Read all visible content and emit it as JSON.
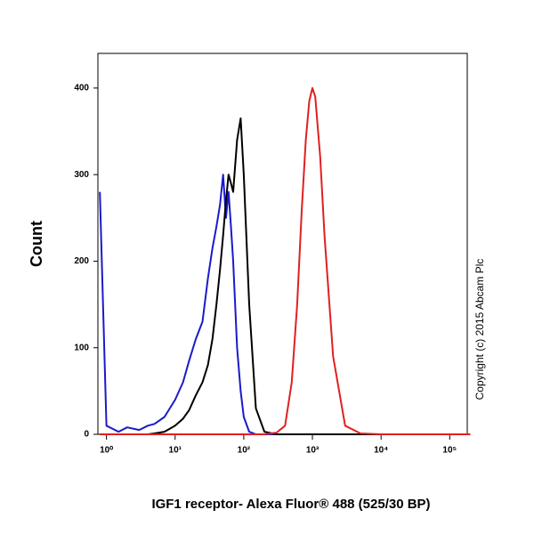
{
  "chart_data": {
    "type": "line",
    "x_label": "IGF1 receptor- Alexa Fluor® 488 (525/30 BP)",
    "y_label": "Count",
    "annotation": "Copyright (c) 2015 Abcam Plc",
    "x_scale": "log",
    "x": [
      0.8,
      1,
      1.5,
      2,
      3,
      4,
      5,
      7,
      10,
      13,
      16,
      20,
      25,
      30,
      35,
      40,
      45,
      50,
      55,
      60,
      65,
      70,
      80,
      90,
      100,
      120,
      150,
      200,
      300,
      400,
      500,
      600,
      700,
      800,
      900,
      1000,
      1100,
      1300,
      1500,
      2000,
      3000,
      5000,
      10000,
      100000,
      200000
    ],
    "series": [
      {
        "name": "Blue",
        "color": "#1a1acc",
        "values": [
          280,
          10,
          3,
          8,
          5,
          10,
          12,
          20,
          40,
          60,
          85,
          110,
          130,
          180,
          215,
          240,
          265,
          300,
          250,
          280,
          240,
          200,
          100,
          50,
          20,
          3,
          0,
          0,
          0,
          0,
          0,
          0,
          0,
          0,
          0,
          0,
          0,
          0,
          0,
          0,
          0,
          0,
          0,
          0,
          0
        ]
      },
      {
        "name": "Black",
        "color": "#000000",
        "values": [
          0,
          0,
          0,
          0,
          0,
          0,
          1,
          3,
          10,
          18,
          28,
          45,
          60,
          80,
          110,
          150,
          190,
          230,
          270,
          300,
          290,
          280,
          340,
          365,
          300,
          150,
          30,
          3,
          0,
          0,
          0,
          0,
          0,
          0,
          0,
          0,
          0,
          0,
          0,
          0,
          0,
          0,
          0,
          0,
          0
        ]
      },
      {
        "name": "Red",
        "color": "#e02020",
        "values": [
          0,
          0,
          0,
          0,
          0,
          0,
          0,
          0,
          0,
          0,
          0,
          0,
          0,
          0,
          0,
          0,
          0,
          0,
          0,
          0,
          0,
          0,
          0,
          0,
          0,
          0,
          0,
          0,
          2,
          10,
          60,
          150,
          260,
          340,
          385,
          400,
          390,
          320,
          230,
          90,
          10,
          1,
          0,
          0,
          0
        ]
      }
    ],
    "xlim": [
      0.75,
      180000
    ],
    "xticks": [
      {
        "value": 1,
        "label": "10⁰"
      },
      {
        "value": 10,
        "label": "10¹"
      },
      {
        "value": 100,
        "label": "10²"
      },
      {
        "value": 1000,
        "label": "10³"
      },
      {
        "value": 10000,
        "label": "10⁴"
      },
      {
        "value": 100000,
        "label": "10⁵"
      }
    ],
    "ylim": [
      0,
      440
    ],
    "yticks": [
      0,
      100,
      200,
      300,
      400
    ],
    "grid": false
  }
}
